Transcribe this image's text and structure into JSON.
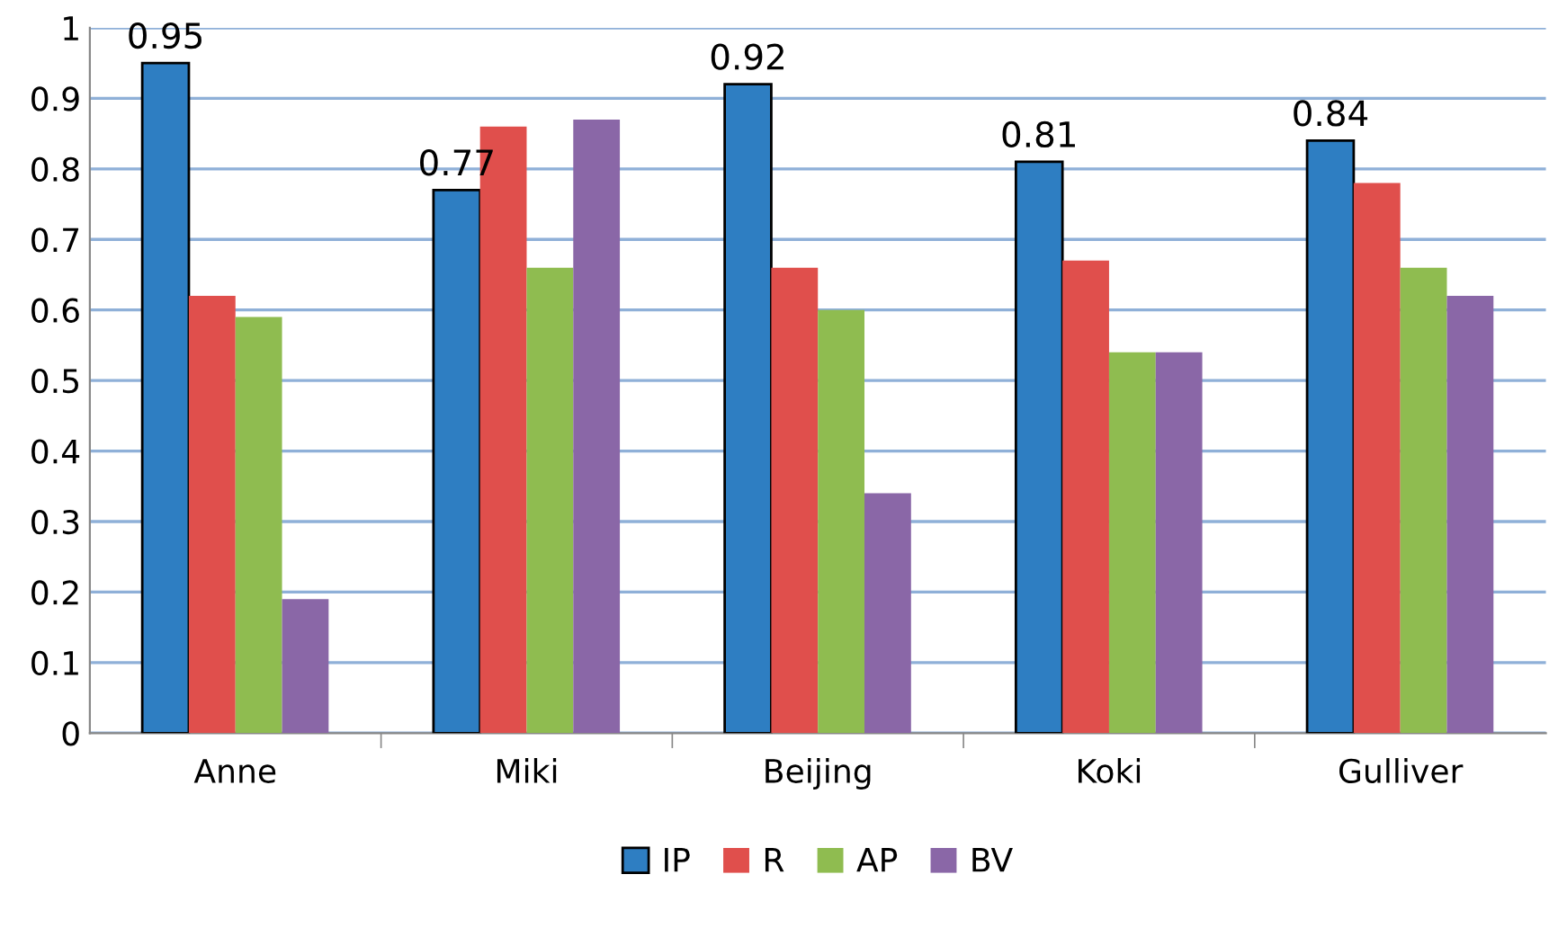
{
  "chart_data": {
    "type": "bar",
    "categories": [
      "Anne",
      "Miki",
      "Beijing",
      "Koki",
      "Gulliver"
    ],
    "series": [
      {
        "name": "IP",
        "color": "#2e7ec2",
        "values": [
          0.95,
          0.77,
          0.92,
          0.81,
          0.84
        ],
        "value_labels": [
          "0.95",
          "0.77",
          "0.92",
          "0.81",
          "0.84"
        ]
      },
      {
        "name": "R",
        "color": "#e04f4c",
        "values": [
          0.62,
          0.86,
          0.66,
          0.67,
          0.78
        ]
      },
      {
        "name": "AP",
        "color": "#8fbc50",
        "values": [
          0.59,
          0.66,
          0.6,
          0.54,
          0.66
        ]
      },
      {
        "name": "BV",
        "color": "#8a67a7",
        "values": [
          0.19,
          0.87,
          0.34,
          0.54,
          0.62
        ]
      }
    ],
    "ylim": [
      0,
      1
    ],
    "yticks": [
      0,
      0.1,
      0.2,
      0.3,
      0.4,
      0.5,
      0.6,
      0.7,
      0.8,
      0.9,
      1
    ],
    "grid": "y",
    "legend": "bottom"
  }
}
